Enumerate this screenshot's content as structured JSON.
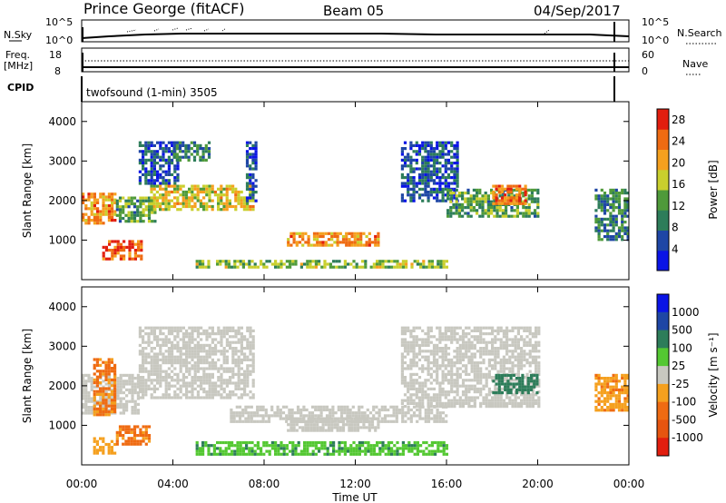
{
  "header": {
    "station": "Prince George (fitACF)",
    "beam": "Beam 05",
    "date": "04/Sep/2017"
  },
  "status_panels": {
    "nsky_label": "N.Sky",
    "nsky_ticks": [
      "10^5",
      "10^0"
    ],
    "nsearch_label": "N.Search",
    "nsearch_ticks": [
      "10^5",
      "10^0"
    ],
    "freq_label_1": "Freq.",
    "freq_label_2": "[MHz]",
    "freq_ticks": [
      "18",
      "8"
    ],
    "nave_label": "Nave",
    "nave_ticks": [
      "60",
      "0"
    ],
    "cpid_label": "CPID",
    "cpid_text": "twofsound (1-min) 3505"
  },
  "colors": {
    "power_scale": [
      "#0a14e6",
      "#1e46a5",
      "#2d7d5a",
      "#4f9a3a",
      "#c9cf2d",
      "#f5a01e",
      "#ef6b12",
      "#e21e0e"
    ],
    "velocity_scale": [
      "#e21e0e",
      "#ef6b12",
      "#f5a01e",
      "#c8c8c0",
      "#c8c8c0",
      "#54c832",
      "#2d7d5a",
      "#1e46a5",
      "#0a14e6"
    ],
    "ground_scatter": "#c8c8c0"
  },
  "chart_data": [
    {
      "type": "heatmap",
      "title": "",
      "xlabel": "Time UT",
      "ylabel": "Slant Range [km]",
      "xlim": [
        0,
        24
      ],
      "ylim": [
        0,
        4500
      ],
      "x_ticks": [
        "00:00",
        "04:00",
        "08:00",
        "12:00",
        "16:00",
        "20:00",
        "00:00"
      ],
      "y_ticks": [
        "1000",
        "2000",
        "3000",
        "4000"
      ],
      "colorbar_label": "Power [dB]",
      "colorbar_ticks": [
        "4",
        "8",
        "12",
        "16",
        "20",
        "24",
        "28"
      ],
      "colorbar_range": [
        0,
        30
      ],
      "regions": [
        {
          "t0": 0.0,
          "t1": 1.5,
          "r0": 1400,
          "r1": 2200,
          "value": 22
        },
        {
          "t0": 0.9,
          "t1": 2.6,
          "r0": 500,
          "r1": 1000,
          "value": 26
        },
        {
          "t0": 1.5,
          "t1": 3.2,
          "r0": 1500,
          "r1": 2100,
          "value": 12
        },
        {
          "t0": 2.5,
          "t1": 4.2,
          "r0": 2400,
          "r1": 3500,
          "value": 6
        },
        {
          "t0": 3.0,
          "t1": 7.5,
          "r0": 1800,
          "r1": 2400,
          "value": 18
        },
        {
          "t0": 4.0,
          "t1": 5.6,
          "r0": 3000,
          "r1": 3500,
          "value": 10
        },
        {
          "t0": 7.2,
          "t1": 7.6,
          "r0": 2000,
          "r1": 3500,
          "value": 6
        },
        {
          "t0": 9.0,
          "t1": 13.0,
          "r0": 900,
          "r1": 1200,
          "value": 22
        },
        {
          "t0": 5.0,
          "t1": 16.0,
          "r0": 300,
          "r1": 500,
          "value": 14
        },
        {
          "t0": 14.0,
          "t1": 16.5,
          "r0": 2000,
          "r1": 3500,
          "value": 6
        },
        {
          "t0": 16.0,
          "t1": 20.0,
          "r0": 1600,
          "r1": 2300,
          "value": 12
        },
        {
          "t0": 18.0,
          "t1": 19.5,
          "r0": 1900,
          "r1": 2400,
          "value": 24
        },
        {
          "t0": 22.5,
          "t1": 24.0,
          "r0": 1000,
          "r1": 2300,
          "value": 10
        }
      ]
    },
    {
      "type": "heatmap",
      "title": "",
      "xlabel": "Time UT",
      "ylabel": "Slant Range [km]",
      "xlim": [
        0,
        24
      ],
      "ylim": [
        0,
        4500
      ],
      "x_ticks": [
        "00:00",
        "04:00",
        "08:00",
        "12:00",
        "16:00",
        "20:00",
        "00:00"
      ],
      "y_ticks": [
        "1000",
        "2000",
        "3000",
        "4000"
      ],
      "colorbar_label": "Velocity [m s⁻¹]",
      "colorbar_ticks": [
        "1000",
        "500",
        "100",
        "25",
        "-25",
        "-100",
        "-500",
        "-1000"
      ],
      "regions": [
        {
          "t0": 0.0,
          "t1": 2.5,
          "r0": 1300,
          "r1": 2300,
          "value": "ground"
        },
        {
          "t0": 0.5,
          "t1": 1.5,
          "r0": 1300,
          "r1": 2700,
          "value": -600
        },
        {
          "t0": 0.5,
          "t1": 1.5,
          "r0": 300,
          "r1": 700,
          "value": -300
        },
        {
          "t0": 1.5,
          "t1": 3.0,
          "r0": 500,
          "r1": 1000,
          "value": -700
        },
        {
          "t0": 2.5,
          "t1": 7.5,
          "r0": 1700,
          "r1": 3500,
          "value": "ground"
        },
        {
          "t0": 6.5,
          "t1": 16.0,
          "r0": 1100,
          "r1": 1500,
          "value": "ground"
        },
        {
          "t0": 9.0,
          "t1": 13.0,
          "r0": 900,
          "r1": 1200,
          "value": "ground"
        },
        {
          "t0": 5.0,
          "t1": 16.0,
          "r0": 300,
          "r1": 600,
          "value": 80
        },
        {
          "t0": 14.0,
          "t1": 20.0,
          "r0": 1500,
          "r1": 3500,
          "value": "ground"
        },
        {
          "t0": 18.0,
          "t1": 20.0,
          "r0": 1800,
          "r1": 2300,
          "value": 300
        },
        {
          "t0": 22.5,
          "t1": 24.0,
          "r0": 1400,
          "r1": 2300,
          "value": -400
        }
      ]
    }
  ]
}
